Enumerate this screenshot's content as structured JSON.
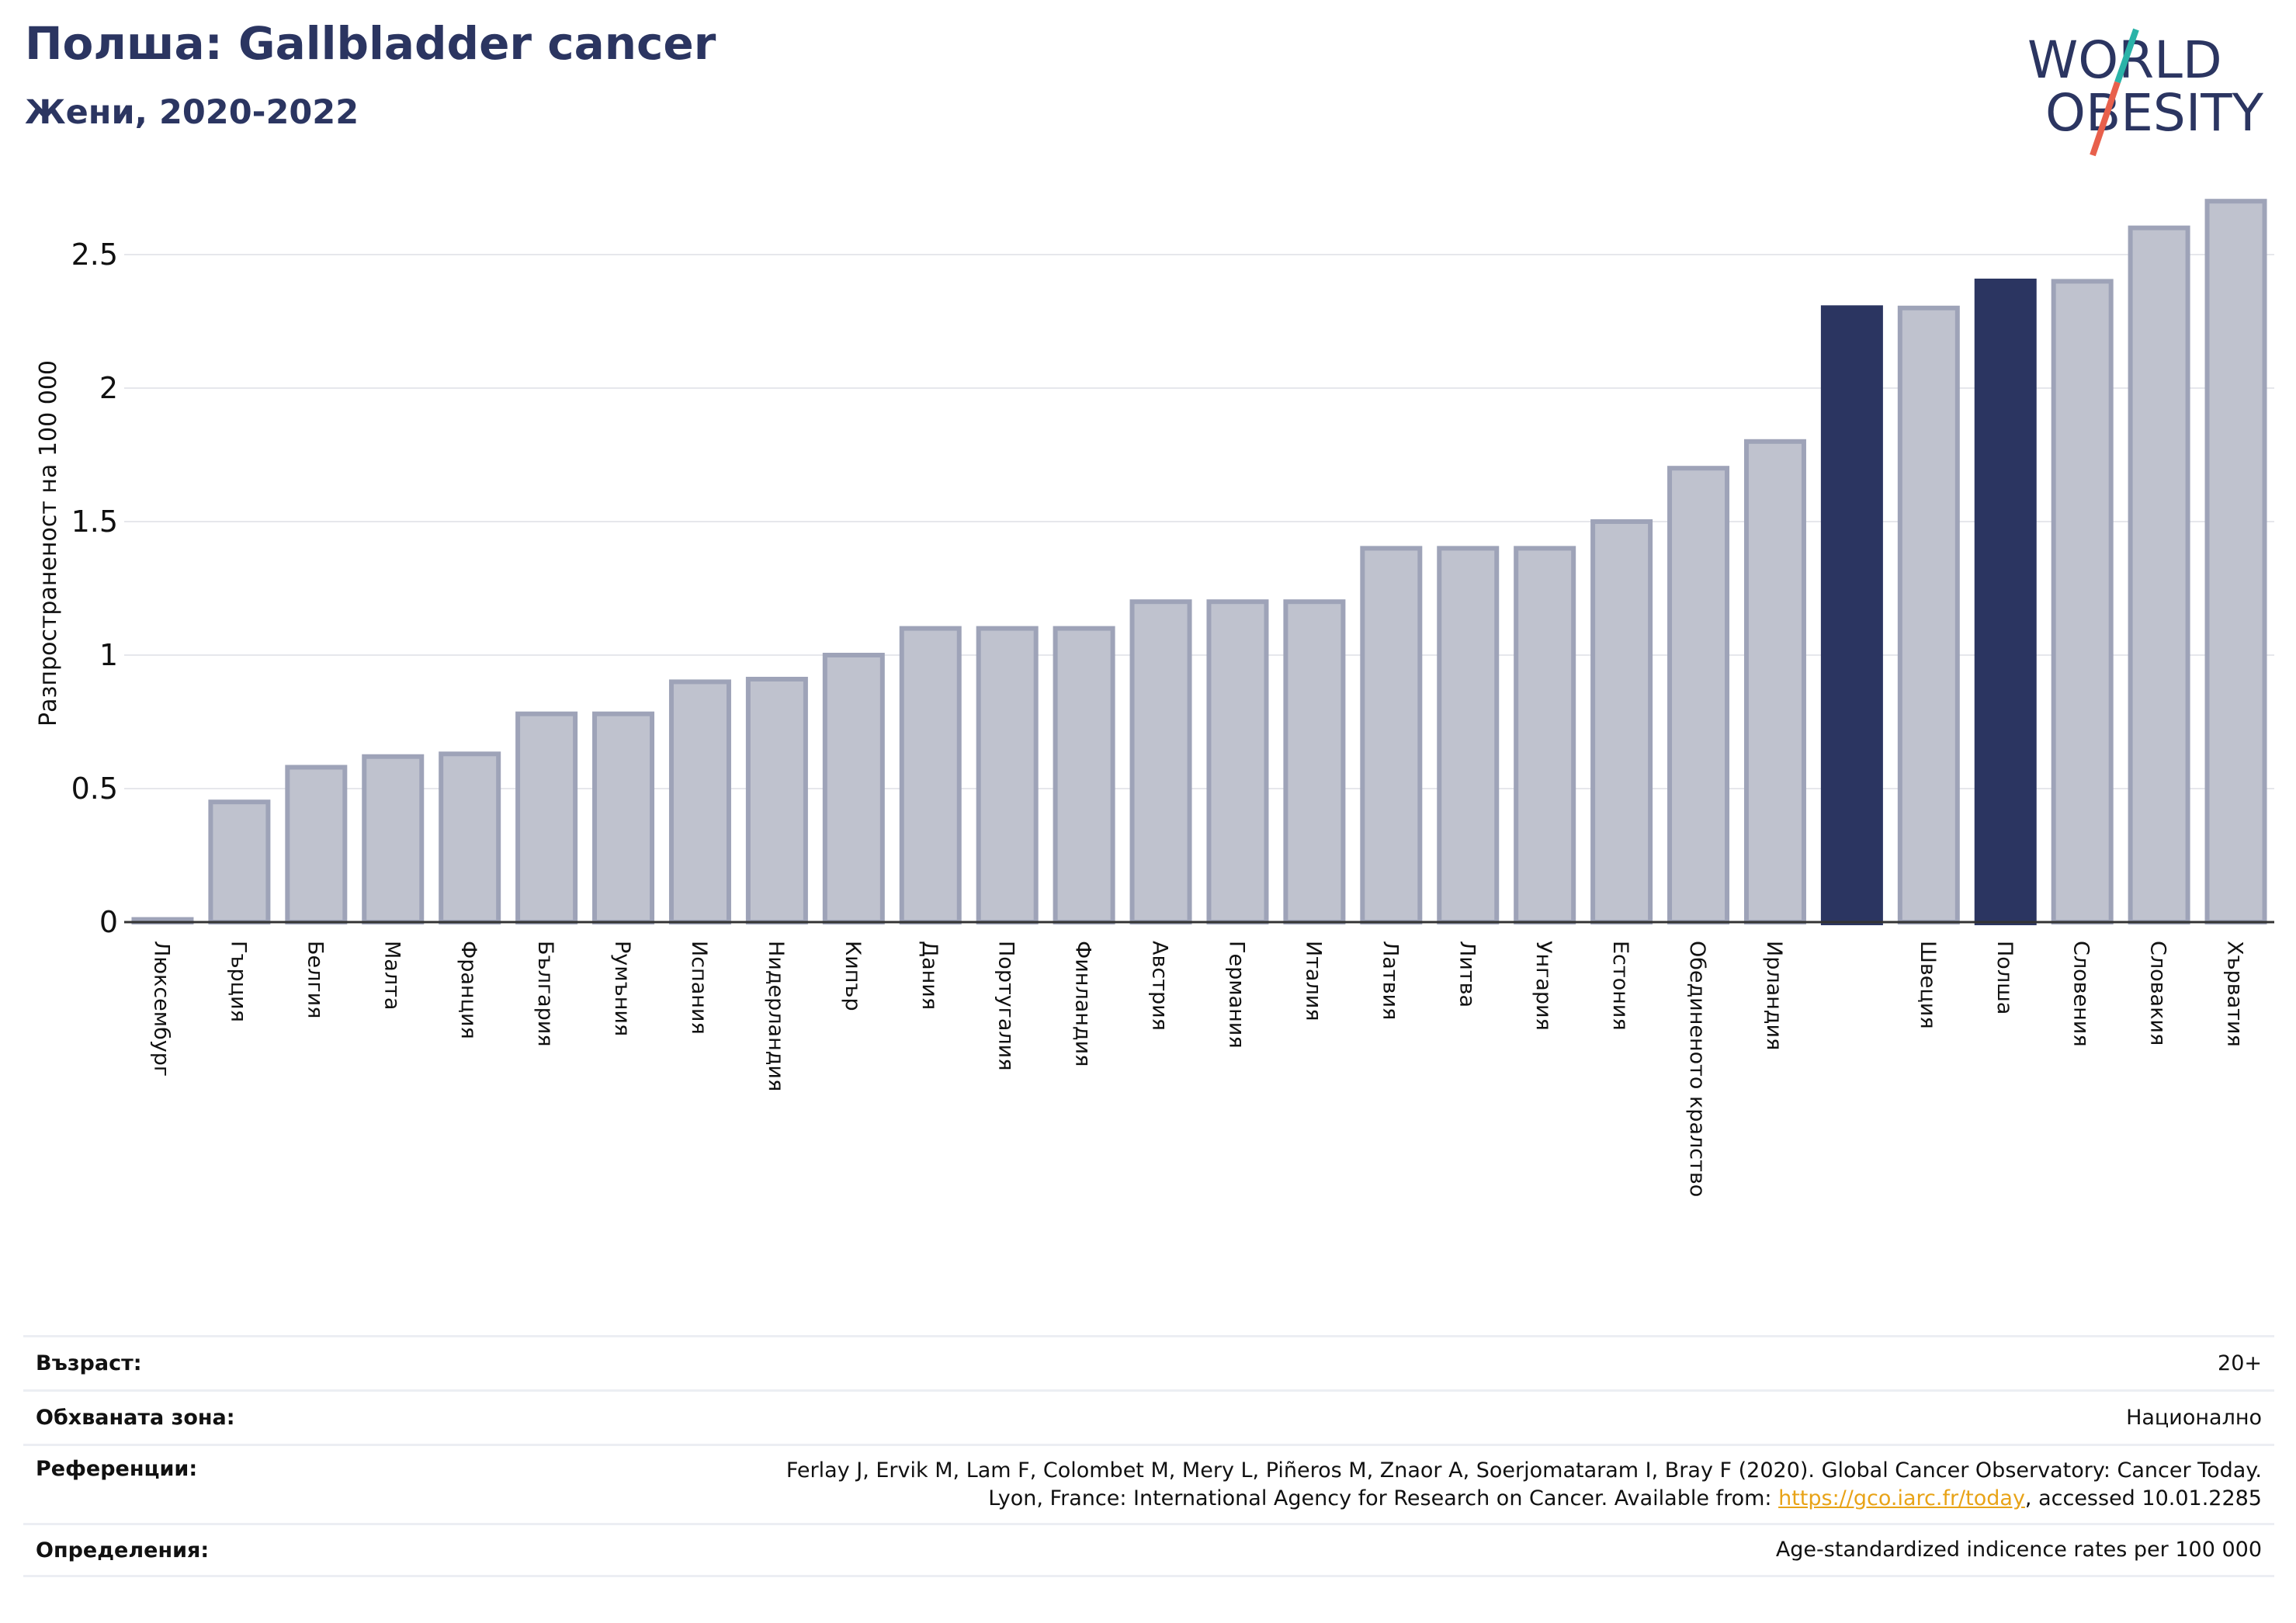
{
  "header": {
    "title": "Полша: Gallbladder cancer",
    "subtitle": "Жени, 2020-2022"
  },
  "logo": {
    "line1": "WORLD",
    "line2": "OBESITY",
    "colors": {
      "text": "#2b3561",
      "slash_top": "#2bb3a8",
      "slash_bottom": "#e8604c"
    }
  },
  "colors": {
    "bar_default": "#bfc2ce",
    "bar_default_border": "#9ea3b8",
    "bar_highlight": "#2b3561",
    "grid": "#e6e7ec",
    "axis": "#333333"
  },
  "chart_data": {
    "type": "bar",
    "ylabel": "Разпространеност  на 100 000",
    "ylim": [
      0,
      2.75
    ],
    "yticks": [
      {
        "value": 0,
        "label": "0"
      },
      {
        "value": 0.5,
        "label": "0.5"
      },
      {
        "value": 1,
        "label": "1"
      },
      {
        "value": 1.5,
        "label": "1.5"
      },
      {
        "value": 2,
        "label": "2"
      },
      {
        "value": 2.5,
        "label": "2.5"
      }
    ],
    "grid": true,
    "categories": [
      "Люксембург",
      "Гърция",
      "Белгия",
      "Малта",
      "Франция",
      "България",
      "Румъния",
      "Испания",
      "Нидерландия",
      "Кипър",
      "Дания",
      "Португалия",
      "Финландия",
      "Австрия",
      "Германия",
      "Италия",
      "Латвия",
      "Литва",
      "Унгария",
      "Естония",
      "Обединеното кралство",
      "Ирландия",
      "",
      "Швеция",
      "Полша",
      "Словения",
      "Словакия",
      "Хърватия"
    ],
    "values": [
      0.01,
      0.45,
      0.58,
      0.62,
      0.63,
      0.78,
      0.78,
      0.9,
      0.91,
      1.0,
      1.1,
      1.1,
      1.1,
      1.2,
      1.2,
      1.2,
      1.4,
      1.4,
      1.4,
      1.5,
      1.7,
      1.8,
      2.31,
      2.3,
      2.41,
      2.4,
      2.6,
      2.7
    ],
    "highlight": [
      false,
      false,
      false,
      false,
      false,
      false,
      false,
      false,
      false,
      false,
      false,
      false,
      false,
      false,
      false,
      false,
      false,
      false,
      false,
      false,
      false,
      false,
      true,
      false,
      true,
      false,
      false,
      false
    ]
  },
  "info": {
    "age_label": "Възраст:",
    "age_value": "20+",
    "area_label": "Обхваната зона:",
    "area_value": "Национално",
    "refs_label": "Референции:",
    "refs_line1": "Ferlay J, Ervik M, Lam F, Colombet M, Mery L, Piñeros M, Znaor A, Soerjomataram I, Bray F (2020). Global Cancer Observatory: Cancer Today.",
    "refs_line2_pre": "Lyon, France: International Agency for Research on Cancer. Available from: ",
    "refs_link": "https://gco.iarc.fr/today",
    "refs_line2_post": ", accessed 10.01.2285",
    "defs_label": "Определения:",
    "defs_value": "Age-standardized indicence rates per 100 000"
  }
}
